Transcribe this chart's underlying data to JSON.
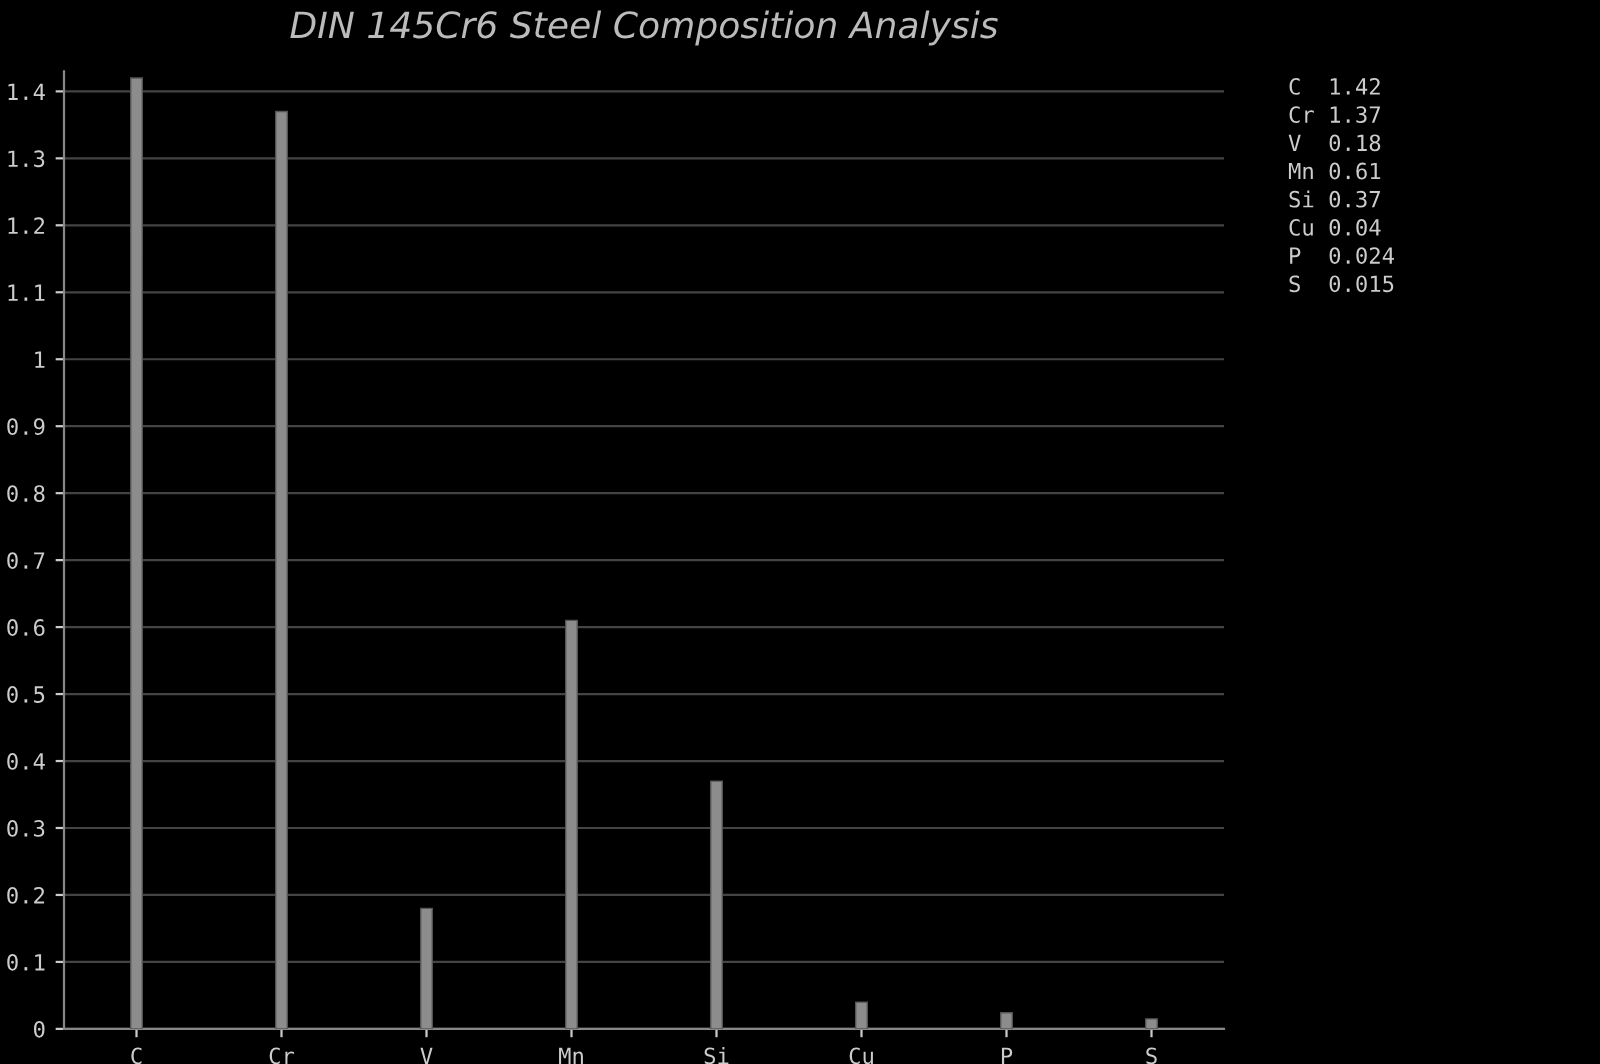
{
  "chart_data": {
    "type": "bar",
    "title": "DIN 145Cr6 Steel Composition Analysis",
    "categories": [
      "C",
      "Cr",
      "V",
      "Mn",
      "Si",
      "Cu",
      "P",
      "S"
    ],
    "values": [
      1.42,
      1.37,
      0.18,
      0.61,
      0.37,
      0.04,
      0.024,
      0.015
    ],
    "color": "#8c8c8c",
    "grid": "y",
    "annotations": [
      "C  1.42",
      "Cr 1.37",
      "V  0.18",
      "Mn 0.61",
      "Si 0.37",
      "Cu 0.04",
      "P  0.024",
      "S  0.015"
    ],
    "ylim": [
      0,
      1.43
    ],
    "yticks": [
      0,
      0.1,
      0.2,
      0.3,
      0.4,
      0.5,
      0.6,
      0.7,
      0.8,
      0.9,
      1,
      1.1,
      1.2,
      1.3,
      1.4
    ]
  }
}
